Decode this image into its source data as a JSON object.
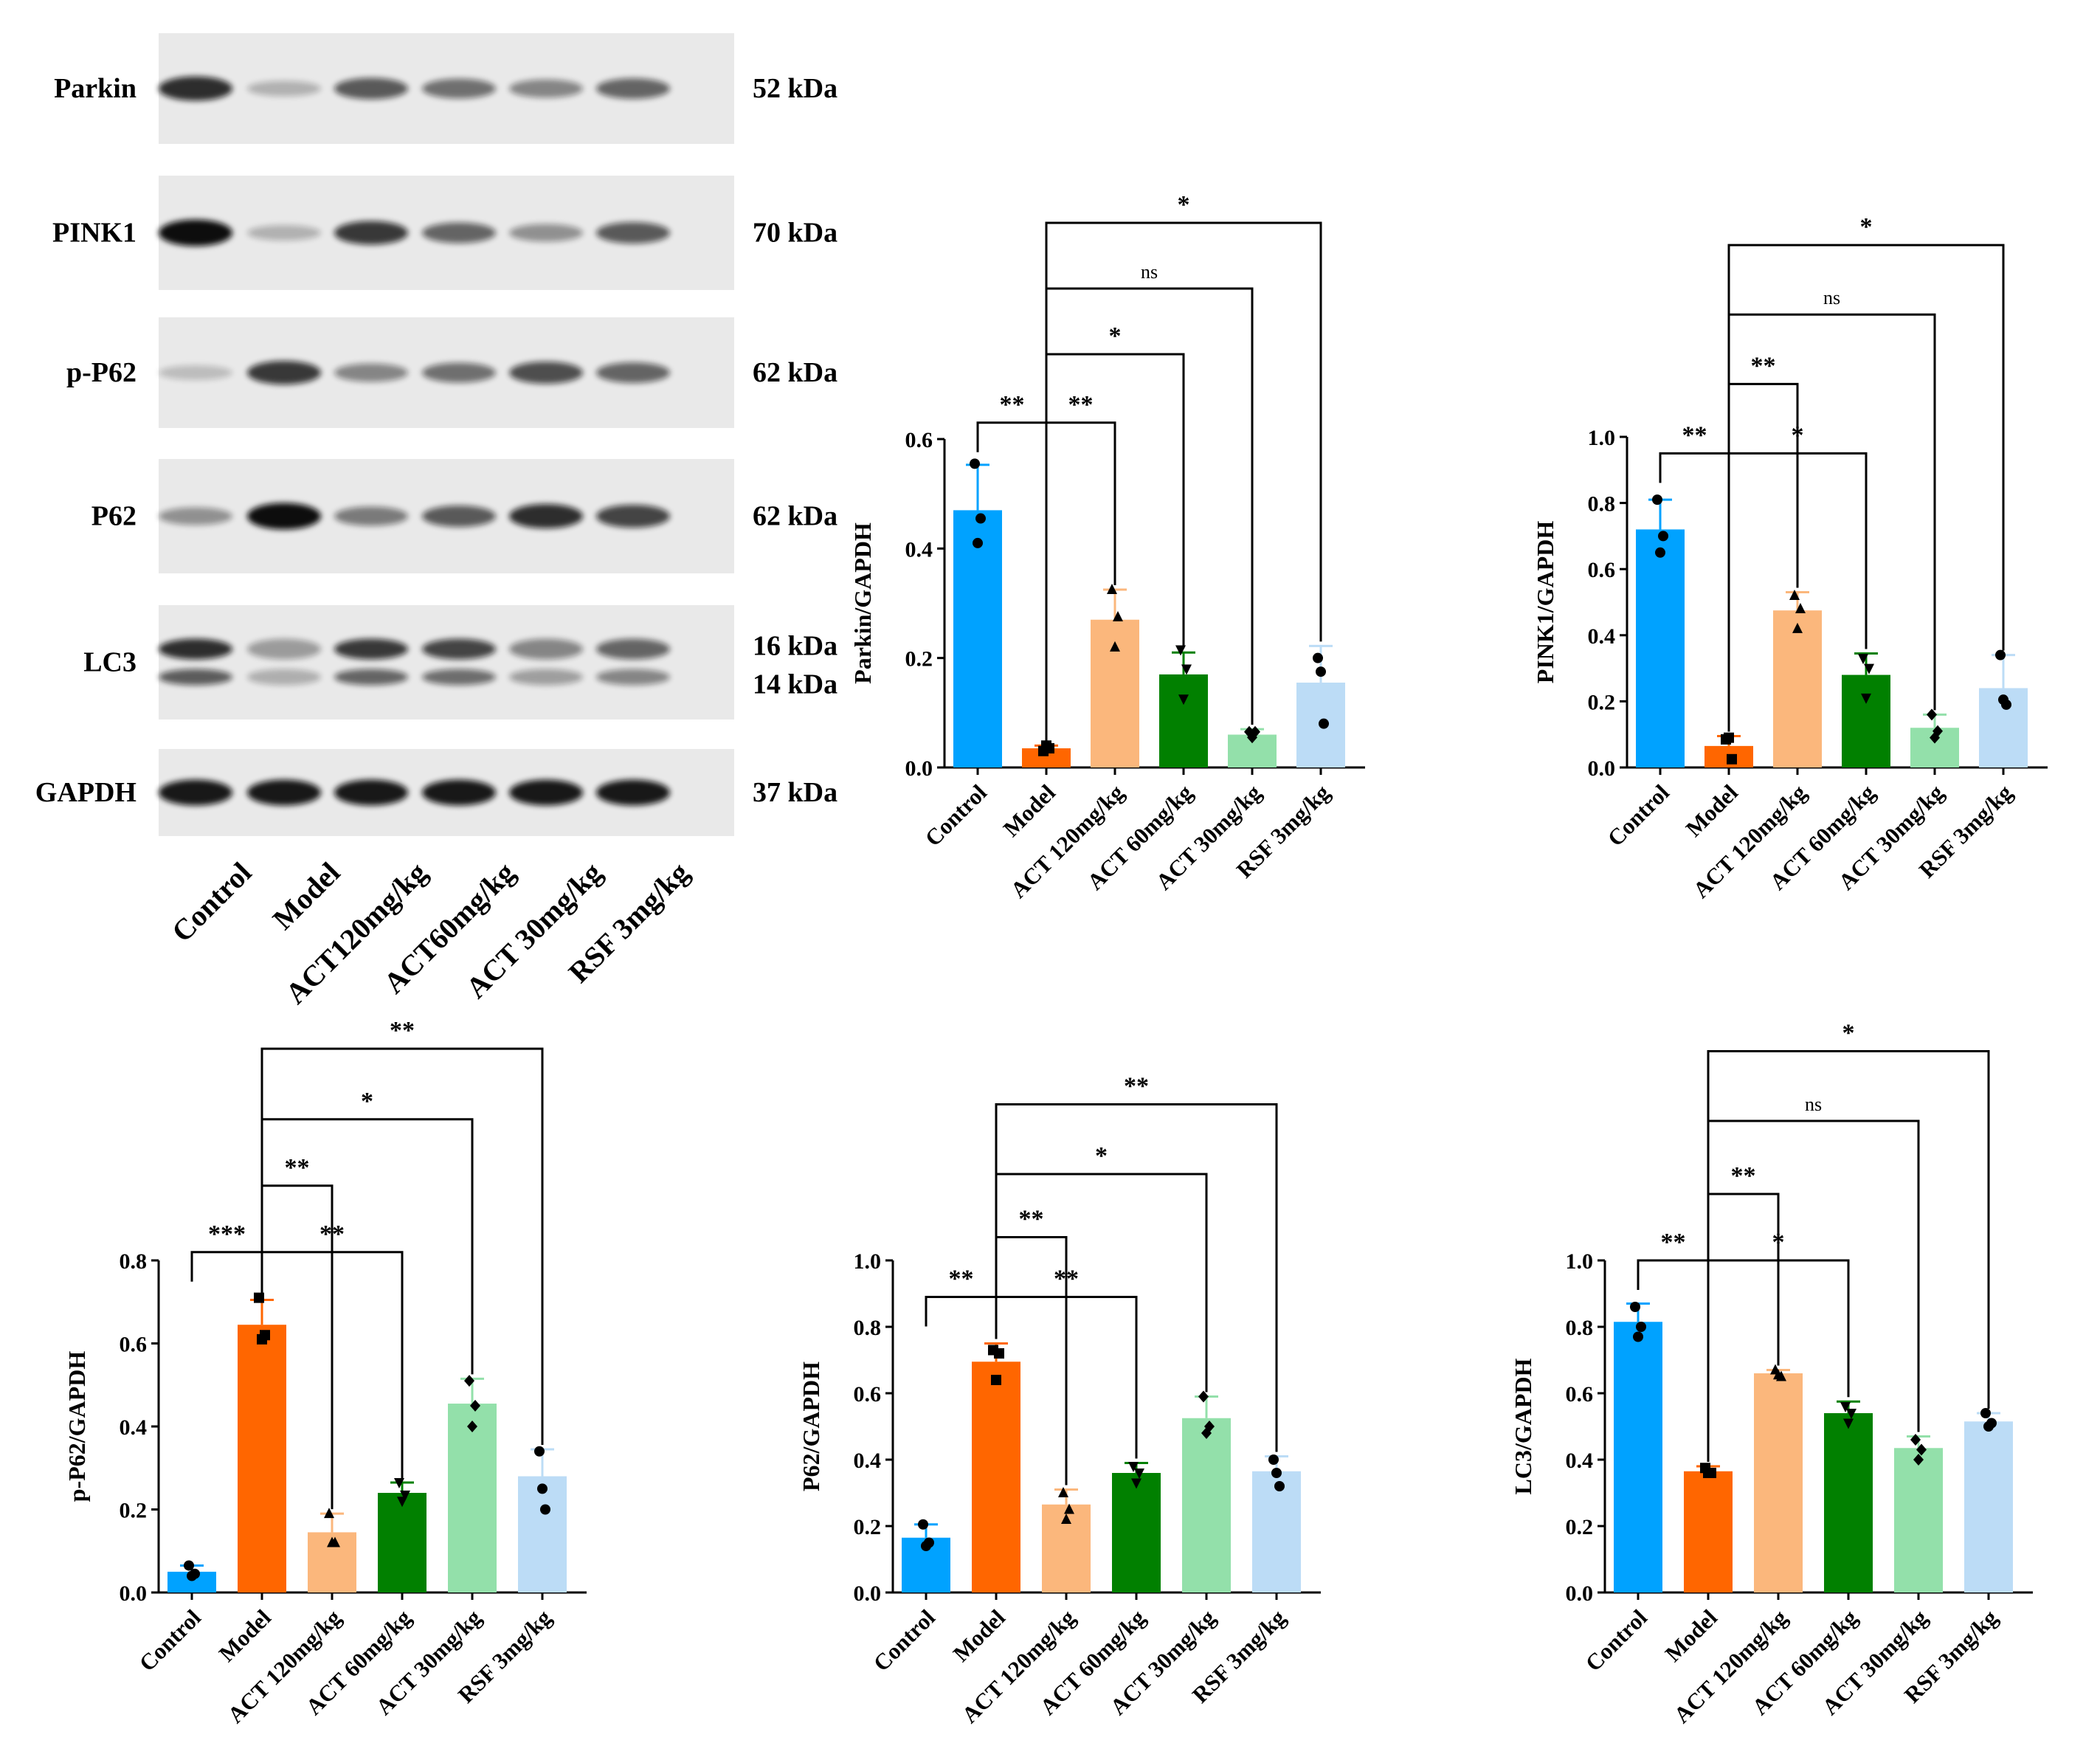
{
  "western_blot": {
    "bands": [
      {
        "label": "Parkin",
        "kda": "52 kDa"
      },
      {
        "label": "PINK1",
        "kda": "70 kDa"
      },
      {
        "label": "p-P62",
        "kda": "62 kDa"
      },
      {
        "label": "P62",
        "kda": "62 kDa"
      },
      {
        "label": "LC3",
        "kda": "16 kDa",
        "kda2": "14 kDa"
      },
      {
        "label": "GAPDH",
        "kda": "37 kDa"
      }
    ],
    "lanes": [
      "Control",
      "Model",
      "ACT120mg/kg",
      "ACT60mg/kg",
      "ACT 30mg/kg",
      "RSF 3mg/kg"
    ],
    "intensities": [
      [
        0.85,
        0.25,
        0.65,
        0.55,
        0.45,
        0.6
      ],
      [
        1.0,
        0.25,
        0.8,
        0.6,
        0.4,
        0.65
      ],
      [
        0.2,
        0.8,
        0.45,
        0.55,
        0.7,
        0.6
      ],
      [
        0.4,
        1.0,
        0.5,
        0.65,
        0.85,
        0.75
      ],
      [
        0.85,
        0.35,
        0.8,
        0.75,
        0.45,
        0.6
      ],
      [
        0.95,
        0.95,
        0.95,
        0.95,
        0.95,
        0.95
      ]
    ]
  },
  "colors": {
    "control": "#00a2ff",
    "model": "#ff6600",
    "act120": "#fbb77c",
    "act60": "#018000",
    "act30": "#93e0aa",
    "rsf": "#bcdcf6",
    "ink": "#000000"
  },
  "chart_data": [
    {
      "type": "bar",
      "id": "parkin",
      "ylabel": "Parkin/GAPDH",
      "categories": [
        "Control",
        "Model",
        "ACT 120mg/kg",
        "ACT 60mg/kg",
        "ACT 30mg/kg",
        "RSF 3mg/kg"
      ],
      "values": [
        0.47,
        0.035,
        0.27,
        0.17,
        0.06,
        0.155
      ],
      "errors": [
        0.083,
        0.005,
        0.055,
        0.04,
        0.01,
        0.067
      ],
      "points": [
        [
          0.555,
          0.41,
          0.455
        ],
        [
          0.03,
          0.04,
          0.035
        ],
        [
          0.325,
          0.22,
          0.275
        ],
        [
          0.215,
          0.125,
          0.18
        ],
        [
          0.065,
          0.055,
          0.065
        ],
        [
          0.2,
          0.175,
          0.08
        ]
      ],
      "ylim": [
        0,
        0.6
      ],
      "yticks": [
        "0.0",
        "0.2",
        "0.4",
        "0.6"
      ],
      "ytick_values": [
        0,
        0.2,
        0.4,
        0.6
      ],
      "brackets": [
        {
          "from": 0,
          "to": 1,
          "label": "**",
          "level": 0.63
        },
        {
          "from": 1,
          "to": 2,
          "label": "**",
          "level": 0.63
        },
        {
          "from": 1,
          "to": 3,
          "label": "*",
          "level": 0.755
        },
        {
          "from": 1,
          "to": 4,
          "label": "ns",
          "level": 0.875
        },
        {
          "from": 1,
          "to": 5,
          "label": "*",
          "level": 0.995
        }
      ]
    },
    {
      "type": "bar",
      "id": "pink1",
      "ylabel": "PINK1/GAPDH",
      "categories": [
        "Control",
        "Model",
        "ACT 120mg/kg",
        "ACT 60mg/kg",
        "ACT 30mg/kg",
        "RSF 3mg/kg"
      ],
      "values": [
        0.72,
        0.065,
        0.475,
        0.28,
        0.12,
        0.24
      ],
      "errors": [
        0.09,
        0.03,
        0.055,
        0.065,
        0.04,
        0.1
      ],
      "points": [
        [
          0.81,
          0.65,
          0.7
        ],
        [
          0.085,
          0.09,
          0.025
        ],
        [
          0.52,
          0.42,
          0.48
        ],
        [
          0.33,
          0.21,
          0.3
        ],
        [
          0.16,
          0.09,
          0.11
        ],
        [
          0.34,
          0.205,
          0.19
        ]
      ],
      "ylim": [
        0,
        1.0
      ],
      "yticks": [
        "0.0",
        "0.2",
        "0.4",
        "0.6",
        "0.8",
        "1.0"
      ],
      "ytick_values": [
        0,
        0.2,
        0.4,
        0.6,
        0.8,
        1.0
      ],
      "brackets": [
        {
          "from": 0,
          "to": 1,
          "label": "**",
          "level": 0.95
        },
        {
          "from": 1,
          "to": 3,
          "label": "*",
          "level": 0.95
        },
        {
          "from": 1,
          "to": 2,
          "label": "**",
          "level": 1.16
        },
        {
          "from": 1,
          "to": 4,
          "label": "ns",
          "level": 1.37
        },
        {
          "from": 1,
          "to": 5,
          "label": "*",
          "level": 1.58
        }
      ]
    },
    {
      "type": "bar",
      "id": "pp62",
      "ylabel": "p-P62/GAPDH",
      "categories": [
        "Control",
        "Model",
        "ACT 120mg/kg",
        "ACT 60mg/kg",
        "ACT 30mg/kg",
        "RSF 3mg/kg"
      ],
      "values": [
        0.05,
        0.645,
        0.145,
        0.24,
        0.455,
        0.28
      ],
      "errors": [
        0.015,
        0.06,
        0.045,
        0.025,
        0.06,
        0.065
      ],
      "points": [
        [
          0.065,
          0.04,
          0.045
        ],
        [
          0.71,
          0.61,
          0.62
        ],
        [
          0.19,
          0.12,
          0.12
        ],
        [
          0.265,
          0.22,
          0.235
        ],
        [
          0.51,
          0.4,
          0.45
        ],
        [
          0.34,
          0.25,
          0.2
        ]
      ],
      "ylim": [
        0,
        0.8
      ],
      "yticks": [
        "0.0",
        "0.2",
        "0.4",
        "0.6",
        "0.8"
      ],
      "ytick_values": [
        0,
        0.2,
        0.4,
        0.6,
        0.8
      ],
      "brackets": [
        {
          "from": 0,
          "to": 1,
          "label": "***",
          "level": 0.82
        },
        {
          "from": 1,
          "to": 3,
          "label": "**",
          "level": 0.82
        },
        {
          "from": 1,
          "to": 2,
          "label": "**",
          "level": 0.98
        },
        {
          "from": 1,
          "to": 4,
          "label": "*",
          "level": 1.14
        },
        {
          "from": 1,
          "to": 5,
          "label": "**",
          "level": 1.31
        }
      ]
    },
    {
      "type": "bar",
      "id": "p62",
      "ylabel": "P62/GAPDH",
      "categories": [
        "Control",
        "Model",
        "ACT 120mg/kg",
        "ACT 60mg/kg",
        "ACT 30mg/kg",
        "RSF 3mg/kg"
      ],
      "values": [
        0.165,
        0.695,
        0.265,
        0.36,
        0.525,
        0.365
      ],
      "errors": [
        0.04,
        0.055,
        0.045,
        0.03,
        0.065,
        0.045
      ],
      "points": [
        [
          0.205,
          0.14,
          0.15
        ],
        [
          0.73,
          0.64,
          0.72
        ],
        [
          0.3,
          0.22,
          0.25
        ],
        [
          0.38,
          0.33,
          0.36
        ],
        [
          0.59,
          0.48,
          0.5
        ],
        [
          0.4,
          0.36,
          0.32
        ]
      ],
      "ylim": [
        0,
        1.0
      ],
      "yticks": [
        "0.0",
        "0.2",
        "0.4",
        "0.6",
        "0.8",
        "1.0"
      ],
      "ytick_values": [
        0,
        0.2,
        0.4,
        0.6,
        0.8,
        1.0
      ],
      "brackets": [
        {
          "from": 0,
          "to": 1,
          "label": "**",
          "level": 0.89
        },
        {
          "from": 1,
          "to": 3,
          "label": "**",
          "level": 0.89
        },
        {
          "from": 1,
          "to": 2,
          "label": "**",
          "level": 1.07
        },
        {
          "from": 1,
          "to": 4,
          "label": "*",
          "level": 1.26
        },
        {
          "from": 1,
          "to": 5,
          "label": "**",
          "level": 1.47
        }
      ]
    },
    {
      "type": "bar",
      "id": "lc3",
      "ylabel": "LC3/GAPDH",
      "categories": [
        "Control",
        "Model",
        "ACT 120mg/kg",
        "ACT 60mg/kg",
        "ACT 30mg/kg",
        "RSF 3mg/kg"
      ],
      "values": [
        0.815,
        0.365,
        0.66,
        0.54,
        0.435,
        0.515
      ],
      "errors": [
        0.055,
        0.015,
        0.01,
        0.035,
        0.035,
        0.025
      ],
      "points": [
        [
          0.86,
          0.77,
          0.8
        ],
        [
          0.375,
          0.36,
          0.36
        ],
        [
          0.67,
          0.655,
          0.65
        ],
        [
          0.56,
          0.51,
          0.54
        ],
        [
          0.46,
          0.4,
          0.43
        ],
        [
          0.54,
          0.5,
          0.51
        ]
      ],
      "ylim": [
        0,
        1.0
      ],
      "yticks": [
        "0.0",
        "0.2",
        "0.4",
        "0.6",
        "0.8",
        "1.0"
      ],
      "ytick_values": [
        0,
        0.2,
        0.4,
        0.6,
        0.8,
        1.0
      ],
      "brackets": [
        {
          "from": 0,
          "to": 1,
          "label": "**",
          "level": 1.0
        },
        {
          "from": 1,
          "to": 3,
          "label": "*",
          "level": 1.0
        },
        {
          "from": 1,
          "to": 2,
          "label": "**",
          "level": 1.2
        },
        {
          "from": 1,
          "to": 4,
          "label": "ns",
          "level": 1.42
        },
        {
          "from": 1,
          "to": 5,
          "label": "*",
          "level": 1.63
        }
      ]
    }
  ]
}
